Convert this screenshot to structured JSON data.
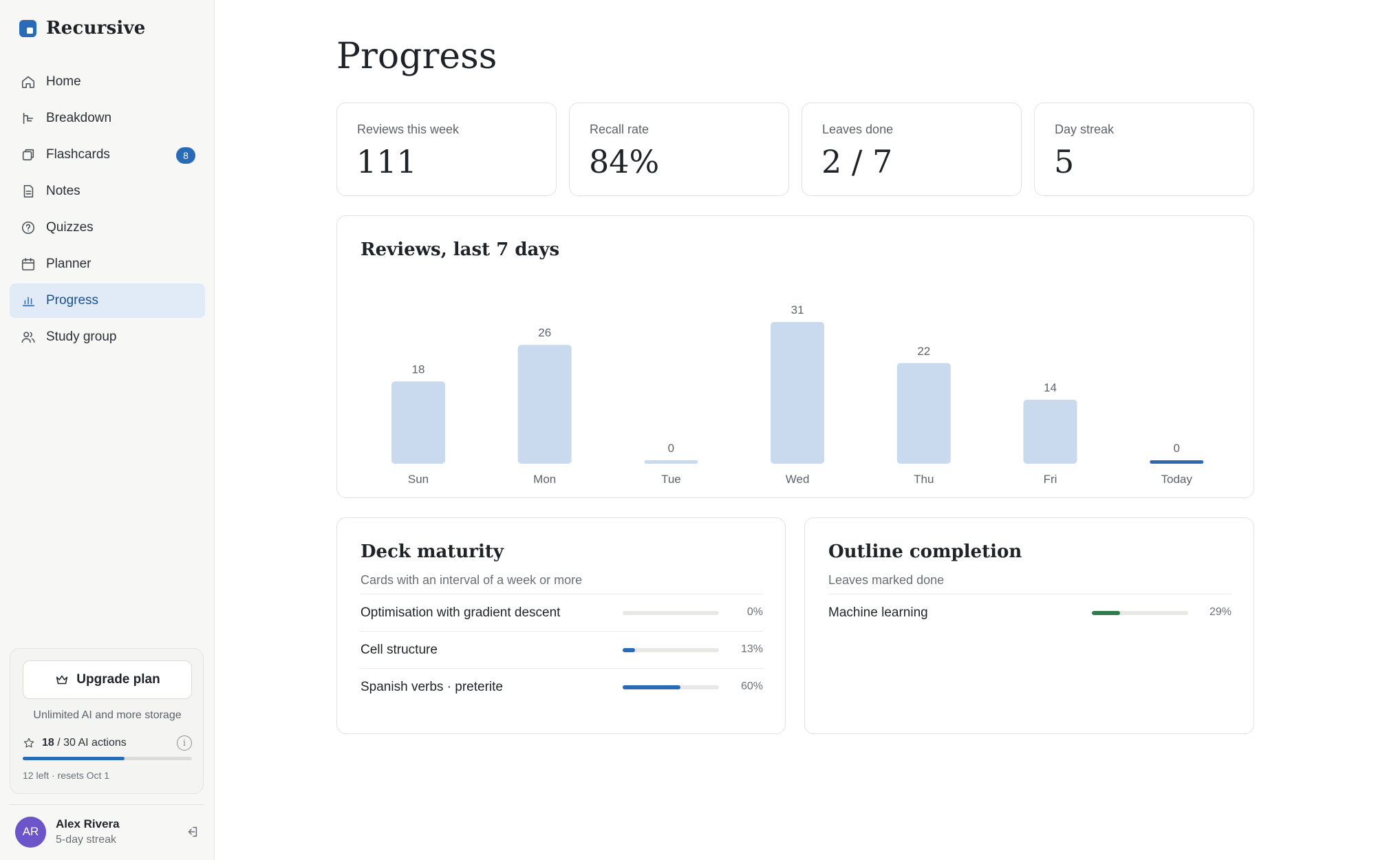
{
  "brand": {
    "name": "Recursive"
  },
  "nav": {
    "items": [
      {
        "label": "Home",
        "icon": "home-icon"
      },
      {
        "label": "Breakdown",
        "icon": "breakdown-icon"
      },
      {
        "label": "Flashcards",
        "icon": "flashcards-icon",
        "badge": "8"
      },
      {
        "label": "Notes",
        "icon": "notes-icon"
      },
      {
        "label": "Quizzes",
        "icon": "quiz-icon"
      },
      {
        "label": "Planner",
        "icon": "calendar-icon"
      },
      {
        "label": "Progress",
        "icon": "bar-chart-icon",
        "active": true
      },
      {
        "label": "Study group",
        "icon": "users-icon"
      }
    ]
  },
  "upgrade": {
    "button_label": "Upgrade plan",
    "subtitle": "Unlimited AI and more storage",
    "ai_used": "18",
    "ai_total_text": " / 30 AI actions",
    "ai_fraction": 0.6,
    "footnote": "12 left · resets Oct 1"
  },
  "user": {
    "initials": "AR",
    "name": "Alex Rivera",
    "subtitle": "5-day streak"
  },
  "page": {
    "title": "Progress"
  },
  "stats": [
    {
      "label": "Reviews this week",
      "value": "111"
    },
    {
      "label": "Recall rate",
      "value": "84%"
    },
    {
      "label": "Leaves done",
      "value": "2 / 7"
    },
    {
      "label": "Day streak",
      "value": "5"
    }
  ],
  "reviews_card": {
    "title": "Reviews, last 7 days"
  },
  "chart_data": {
    "type": "bar",
    "title": "Reviews, last 7 days",
    "categories": [
      "Sun",
      "Mon",
      "Tue",
      "Wed",
      "Thu",
      "Fri",
      "Today"
    ],
    "values": [
      18,
      26,
      0,
      31,
      22,
      14,
      0
    ],
    "highlight_category": "Today",
    "colors": {
      "bar": "#c9d9ee",
      "highlight": "#2a6bb8",
      "label": "#5d6268"
    },
    "ylim": [
      0,
      31
    ],
    "grid": false
  },
  "deck_maturity": {
    "title": "Deck maturity",
    "subtitle": "Cards with an interval of a week or more",
    "color": "#2a6bb8",
    "rows": [
      {
        "label": "Optimisation with gradient descent",
        "pct_text": "0%",
        "fraction": 0.0
      },
      {
        "label": "Cell structure",
        "pct_text": "13%",
        "fraction": 0.13
      },
      {
        "label": "Spanish verbs · preterite",
        "pct_text": "60%",
        "fraction": 0.6
      }
    ]
  },
  "outline_completion": {
    "title": "Outline completion",
    "subtitle": "Leaves marked done",
    "color": "#2e7d4f",
    "rows": [
      {
        "label": "Machine learning",
        "pct_text": "29%",
        "fraction": 0.29
      }
    ]
  }
}
